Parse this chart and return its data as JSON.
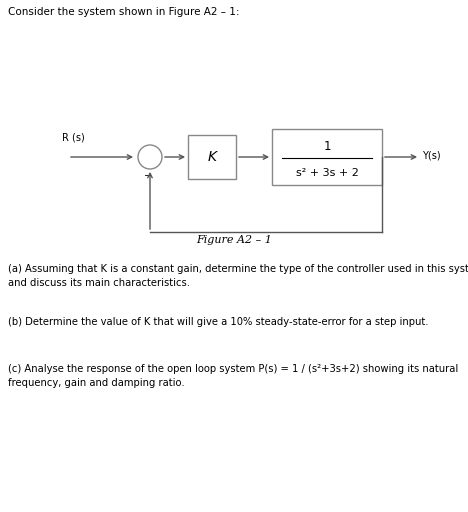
{
  "title": "Consider the system shown in Figure A2 – 1:",
  "figure_label": "Figure A2 – 1",
  "rs_label": "R (s)",
  "ys_label": "Y(s)",
  "k_label": "K",
  "tf_numerator": "1",
  "tf_denominator": "s² + 3s + 2",
  "minus_label": "−",
  "question_a": "(a) Assuming that K is a constant gain, determine the type of the controller used in this system\nand discuss its main characteristics.",
  "question_b": "(b) Determine the value of K that will give a 10% steady-state-error for a step input.",
  "question_c": "(c) Analyse the response of the open loop system P(s) = 1 / (s²+3s+2) showing its natural\nfrequency, gain and damping ratio.",
  "bg_color": "#ffffff",
  "text_color": "#000000",
  "box_color": "#888888",
  "box_face": "#ffffff",
  "line_color": "#555555"
}
